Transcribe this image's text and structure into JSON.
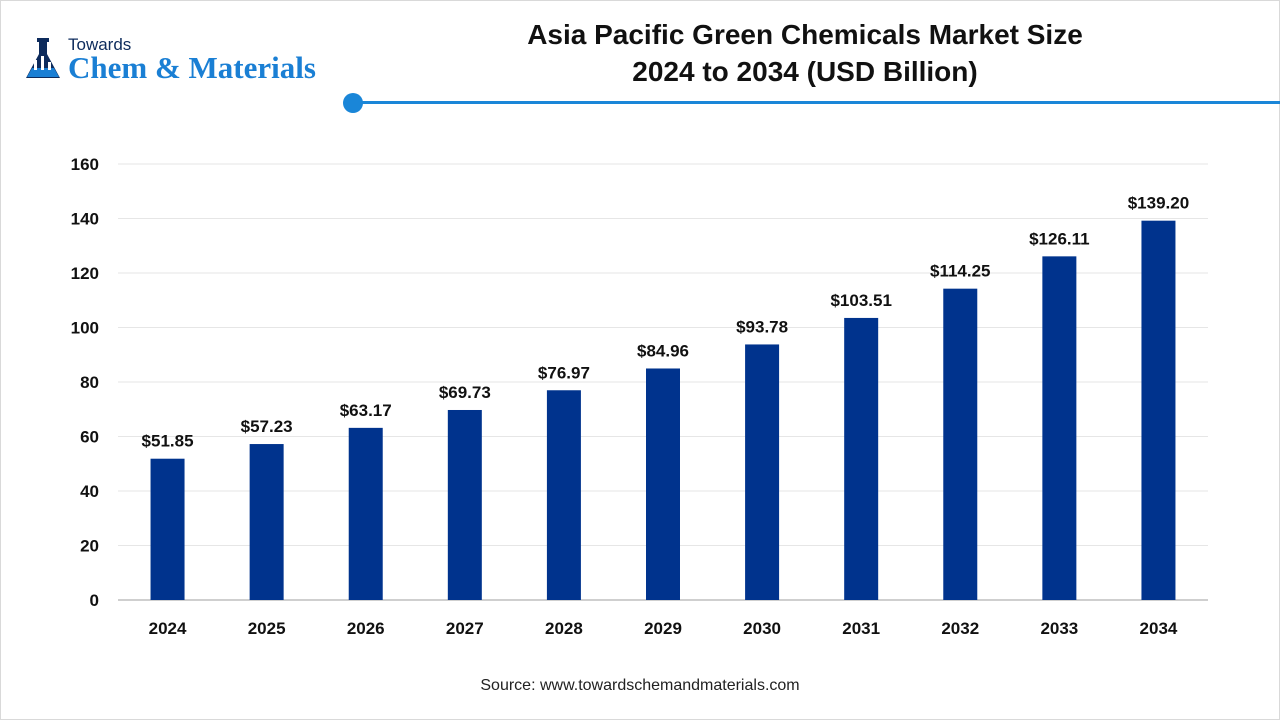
{
  "logo": {
    "line1": "Towards",
    "line2": "Chem & Materials"
  },
  "title": {
    "line1": "Asia Pacific Green Chemicals Market Size",
    "line2": "2024 to 2034 (USD Billion)"
  },
  "source": "Source: www.towardschemandmaterials.com",
  "colors": {
    "bar": "#00338d",
    "accent": "#1a86d8",
    "grid": "#e6e6e6",
    "axis": "#bfbfbf"
  },
  "chart_data": {
    "type": "bar",
    "categories": [
      "2024",
      "2025",
      "2026",
      "2027",
      "2028",
      "2029",
      "2030",
      "2031",
      "2032",
      "2033",
      "2034"
    ],
    "values": [
      51.85,
      57.23,
      63.17,
      69.73,
      76.97,
      84.96,
      93.78,
      103.51,
      114.25,
      126.11,
      139.2
    ],
    "data_labels": [
      "$51.85",
      "$57.23",
      "$63.17",
      "$69.73",
      "$76.97",
      "$84.96",
      "$93.78",
      "$103.51",
      "$114.25",
      "$126.11",
      "$139.20"
    ],
    "ylim": [
      0,
      160
    ],
    "yticks": [
      0,
      20,
      40,
      60,
      80,
      100,
      120,
      140,
      160
    ],
    "grid": true,
    "legend": false
  }
}
